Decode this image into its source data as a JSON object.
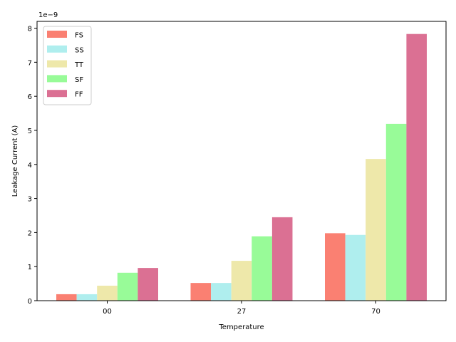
{
  "chart_data": {
    "type": "bar",
    "categories": [
      "00",
      "27",
      "70"
    ],
    "series": [
      {
        "name": "FS",
        "color": "#fa8072",
        "values": [
          1.9e-10,
          5.2e-10,
          1.98e-09
        ]
      },
      {
        "name": "SS",
        "color": "#afeeee",
        "values": [
          1.9e-10,
          5.2e-10,
          1.93e-09
        ]
      },
      {
        "name": "TT",
        "color": "#eee8aa",
        "values": [
          4.4e-10,
          1.17e-09,
          4.16e-09
        ]
      },
      {
        "name": "SF",
        "color": "#98fb98",
        "values": [
          8.2e-10,
          1.89e-09,
          5.19e-09
        ]
      },
      {
        "name": "FF",
        "color": "#db7093",
        "values": [
          9.6e-10,
          2.45e-09,
          7.83e-09
        ]
      }
    ],
    "xlabel": "Temperature",
    "ylabel": "Leakage Current (A)",
    "ylim": [
      0,
      8.2e-09
    ],
    "y_ticks": [
      "0",
      "1",
      "2",
      "3",
      "4",
      "5",
      "6",
      "7",
      "8"
    ],
    "y_offset_label": "1e−9",
    "legend_position": "upper-left",
    "grid": false
  }
}
